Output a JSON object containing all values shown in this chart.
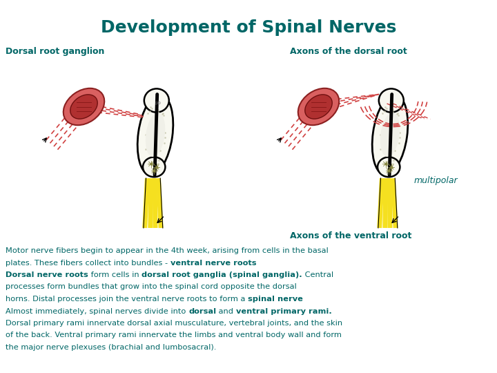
{
  "title": "Development of Spinal Nerves",
  "title_color": "#006666",
  "title_fontsize": 18,
  "bg_color": "#ffffff",
  "teal_color": "#006666",
  "label_dorsal_root_ganglion": "Dorsal root ganglion",
  "label_axons_dorsal": "Axons of the dorsal root",
  "label_multipolar": "multipolar",
  "label_axons_ventral": "Axons of the ventral root",
  "font_size_body": 8.2,
  "font_size_label": 9.0,
  "lines": [
    [
      [
        "Motor nerve fibers begin to appear in the 4th week, arising from cells in the basal",
        false
      ]
    ],
    [
      [
        "plates. These fibers collect into bundles - ",
        false
      ],
      [
        "ventral nerve roots",
        true
      ]
    ],
    [
      [
        "Dorsal nerve roots",
        true
      ],
      [
        " form cells in ",
        false
      ],
      [
        "dorsal root ganglia (spinal ganglia).",
        true
      ],
      [
        " Central",
        false
      ]
    ],
    [
      [
        "processes form bundles that grow into the spinal cord opposite the dorsal",
        false
      ]
    ],
    [
      [
        "horns. Distal processes join the ventral nerve roots to form a ",
        false
      ],
      [
        "spinal nerve",
        true
      ]
    ],
    [
      [
        "Almost immediately, spinal nerves divide into ",
        false
      ],
      [
        "dorsal",
        true
      ],
      [
        " and ",
        false
      ],
      [
        "ventral primary rami.",
        true
      ]
    ],
    [
      [
        "Dorsal primary rami innervate dorsal axial musculature, vertebral joints, and the skin",
        false
      ]
    ],
    [
      [
        "of the back. Ventral primary rami innervate the limbs and ventral body wall and form",
        false
      ]
    ],
    [
      [
        "the major nerve plexuses (brachial and lumbosacral).",
        false
      ]
    ]
  ]
}
